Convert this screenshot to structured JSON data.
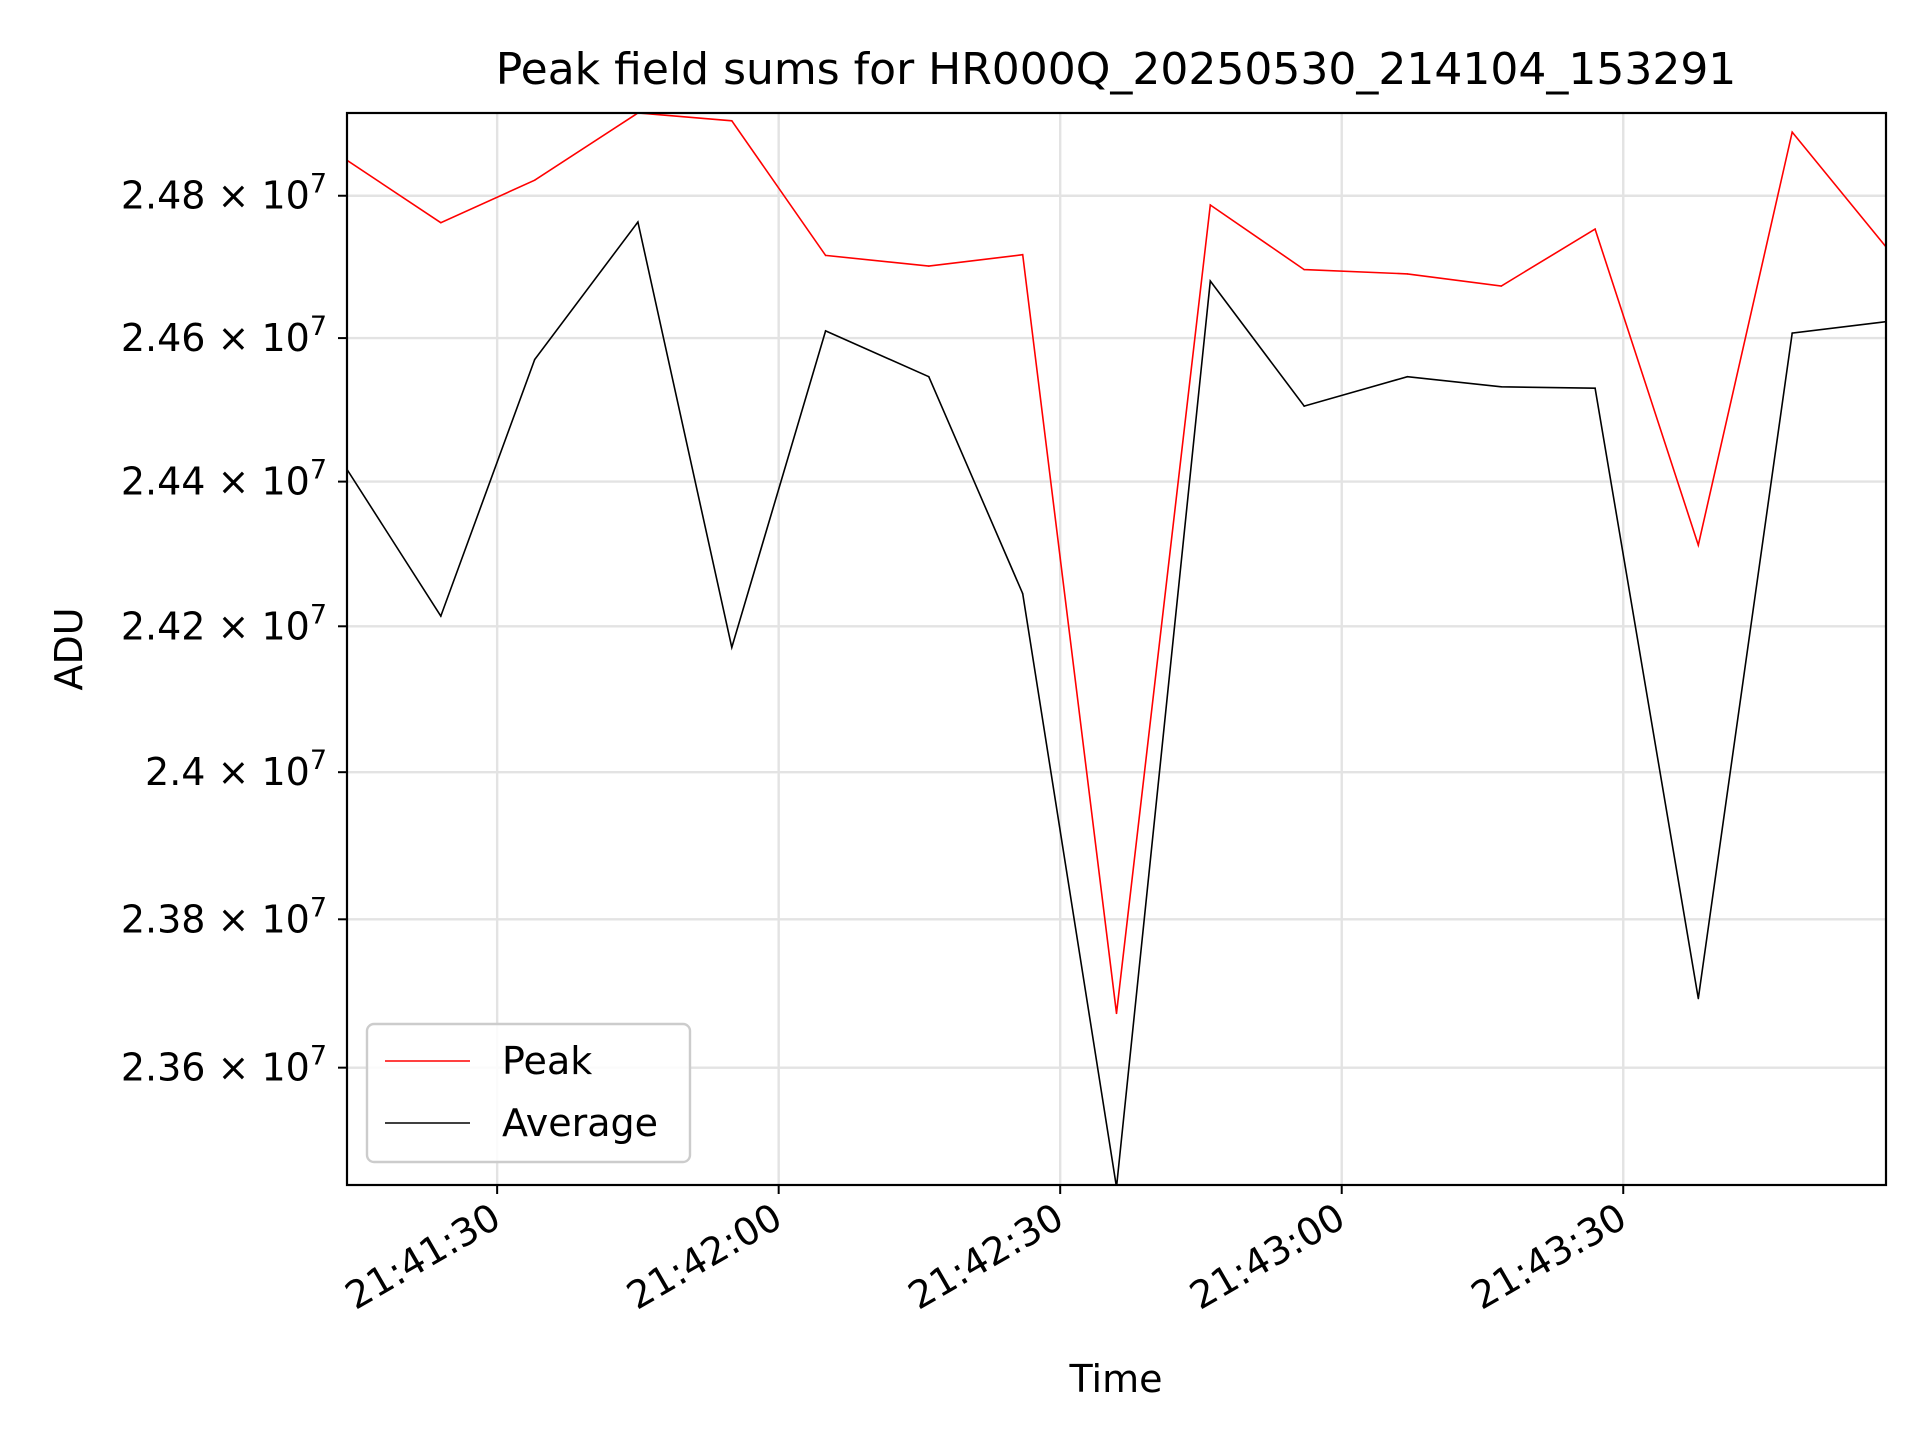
{
  "chart_data": {
    "type": "line",
    "title": "Peak field sums for HR000Q_20250530_214104_153291",
    "xlabel": "Time",
    "ylabel": "ADU",
    "x": [
      "21:41:14",
      "21:41:24",
      "21:41:34",
      "21:41:45",
      "21:41:55",
      "21:42:05",
      "21:42:16",
      "21:42:26",
      "21:42:36",
      "21:42:46",
      "21:42:56",
      "21:43:07",
      "21:43:17",
      "21:43:27",
      "21:43:38",
      "21:43:48",
      "21:43:58"
    ],
    "series": [
      {
        "name": "Peak",
        "color": "#ff0000",
        "values": [
          24850000,
          24762000,
          24822000,
          24917000,
          24906000,
          24716000,
          24701000,
          24717000,
          23673000,
          24787000,
          24696000,
          24690000,
          24673000,
          24753000,
          24312000,
          24890000,
          24728000
        ]
      },
      {
        "name": "Average",
        "color": "#000000",
        "values": [
          24417000,
          24214000,
          24570000,
          24763000,
          24171000,
          24610000,
          24546000,
          24245000,
          23440000,
          24680000,
          24505000,
          24546000,
          24532000,
          24530000,
          23693000,
          24607000,
          24623000
        ]
      }
    ],
    "xlim": [
      "21:41:14",
      "21:43:58"
    ],
    "ylim": [
      23443000,
      24917000
    ],
    "x_ticks": [
      "21:41:30",
      "21:42:00",
      "21:42:30",
      "21:43:00",
      "21:43:30"
    ],
    "y_ticks": [
      23600000,
      23800000,
      24000000,
      24200000,
      24400000,
      24600000,
      24800000
    ],
    "y_tick_labels": [
      {
        "mantissa": "2.36",
        "exponent": "7"
      },
      {
        "mantissa": "2.38",
        "exponent": "7"
      },
      {
        "mantissa": "2.4",
        "exponent": "7"
      },
      {
        "mantissa": "2.42",
        "exponent": "7"
      },
      {
        "mantissa": "2.44",
        "exponent": "7"
      },
      {
        "mantissa": "2.46",
        "exponent": "7"
      },
      {
        "mantissa": "2.48",
        "exponent": "7"
      }
    ],
    "y_scale": "log",
    "grid": true,
    "legend_position": "lower-left"
  }
}
